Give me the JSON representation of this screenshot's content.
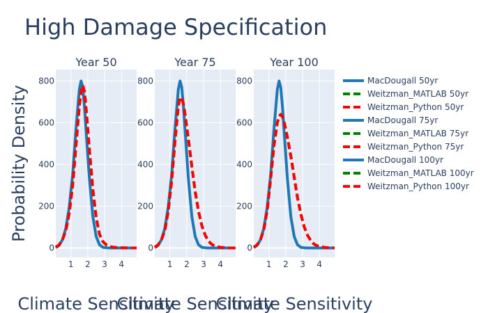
{
  "colors": {
    "plot_bg": "#e5ecf6",
    "grid": "#ffffff",
    "text": "#2a3f5f",
    "macdougall": "#1f77b4",
    "matlab": "#008000",
    "python": "#ff0000"
  },
  "chart_data": {
    "type": "line",
    "title": "High Damage Specification",
    "ylabel": "Probability Density",
    "xlabel": "Climate Sensitivity",
    "x_ticks": [
      1,
      2,
      3,
      4
    ],
    "y_ticks": [
      0,
      200,
      400,
      600,
      800
    ],
    "xlim": [
      0.1,
      4.9
    ],
    "ylim": [
      -45,
      855
    ],
    "x": [
      0.1,
      0.3,
      0.5,
      0.7,
      0.9,
      1.1,
      1.3,
      1.5,
      1.6,
      1.7,
      1.8,
      1.9,
      2.1,
      2.3,
      2.5,
      2.7,
      2.9,
      3.1,
      3.3,
      3.5,
      3.7,
      4.0,
      4.5,
      4.9
    ],
    "panels": [
      {
        "subtitle": "Year 50",
        "series": [
          {
            "name": "MacDougall 50yr",
            "style": "solid",
            "color_key": "macdougall",
            "values": [
              2,
              12,
              40,
              95,
              195,
              350,
              570,
              760,
              800,
              770,
              680,
              560,
              330,
              150,
              55,
              15,
              3,
              1,
              0,
              0,
              0,
              0,
              0,
              0
            ]
          },
          {
            "name": "Weitzman_MATLAB 50yr",
            "style": "dash",
            "color_key": "matlab",
            "values": [
              3,
              15,
              40,
              85,
              165,
              300,
              490,
              680,
              750,
              780,
              750,
              670,
              470,
              280,
              145,
              65,
              30,
              15,
              7,
              4,
              2,
              1,
              0,
              0
            ]
          },
          {
            "name": "Weitzman_Python 50yr",
            "style": "dash",
            "color_key": "python",
            "values": [
              3,
              15,
              40,
              85,
              165,
              300,
              490,
              680,
              750,
              780,
              750,
              670,
              470,
              280,
              145,
              65,
              30,
              15,
              7,
              4,
              2,
              1,
              0,
              0
            ]
          }
        ]
      },
      {
        "subtitle": "Year 75",
        "series": [
          {
            "name": "MacDougall 75yr",
            "style": "solid",
            "color_key": "macdougall",
            "values": [
              2,
              12,
              40,
              95,
              195,
              350,
              570,
              760,
              800,
              770,
              680,
              560,
              330,
              150,
              55,
              15,
              3,
              1,
              0,
              0,
              0,
              0,
              0,
              0
            ]
          },
          {
            "name": "Weitzman_MATLAB 75yr",
            "style": "dash",
            "color_key": "matlab",
            "values": [
              3,
              15,
              40,
              85,
              175,
              320,
              510,
              680,
              720,
              720,
              690,
              640,
              520,
              390,
              270,
              175,
              105,
              60,
              32,
              16,
              8,
              3,
              0,
              0
            ]
          },
          {
            "name": "Weitzman_Python 75yr",
            "style": "dash",
            "color_key": "python",
            "values": [
              3,
              15,
              40,
              85,
              175,
              320,
              510,
              680,
              720,
              720,
              690,
              640,
              520,
              390,
              270,
              175,
              105,
              60,
              32,
              16,
              8,
              3,
              0,
              0
            ]
          }
        ]
      },
      {
        "subtitle": "Year 100",
        "series": [
          {
            "name": "MacDougall 100yr",
            "style": "solid",
            "color_key": "macdougall",
            "values": [
              2,
              12,
              40,
              95,
              195,
              350,
              570,
              760,
              800,
              770,
              680,
              560,
              330,
              150,
              55,
              15,
              3,
              1,
              0,
              0,
              0,
              0,
              0,
              0
            ]
          },
          {
            "name": "Weitzman_MATLAB 100yr",
            "style": "dash",
            "color_key": "matlab",
            "values": [
              3,
              15,
              40,
              90,
              180,
              330,
              490,
              600,
              630,
              640,
              630,
              605,
              530,
              440,
              340,
              240,
              160,
              100,
              60,
              33,
              17,
              6,
              1,
              0
            ]
          },
          {
            "name": "Weitzman_Python 100yr",
            "style": "dash",
            "color_key": "python",
            "values": [
              3,
              15,
              40,
              90,
              180,
              330,
              490,
              600,
              630,
              640,
              630,
              605,
              530,
              440,
              340,
              240,
              160,
              100,
              60,
              33,
              17,
              6,
              1,
              0
            ]
          }
        ]
      }
    ],
    "legend": {
      "placement": "right",
      "entries": [
        "MacDougall 50yr",
        "Weitzman_MATLAB 50yr",
        "Weitzman_Python 50yr",
        "MacDougall 75yr",
        "Weitzman_MATLAB 75yr",
        "Weitzman_Python 75yr",
        "MacDougall 100yr",
        "Weitzman_MATLAB 100yr",
        "Weitzman_Python 100yr"
      ]
    }
  }
}
